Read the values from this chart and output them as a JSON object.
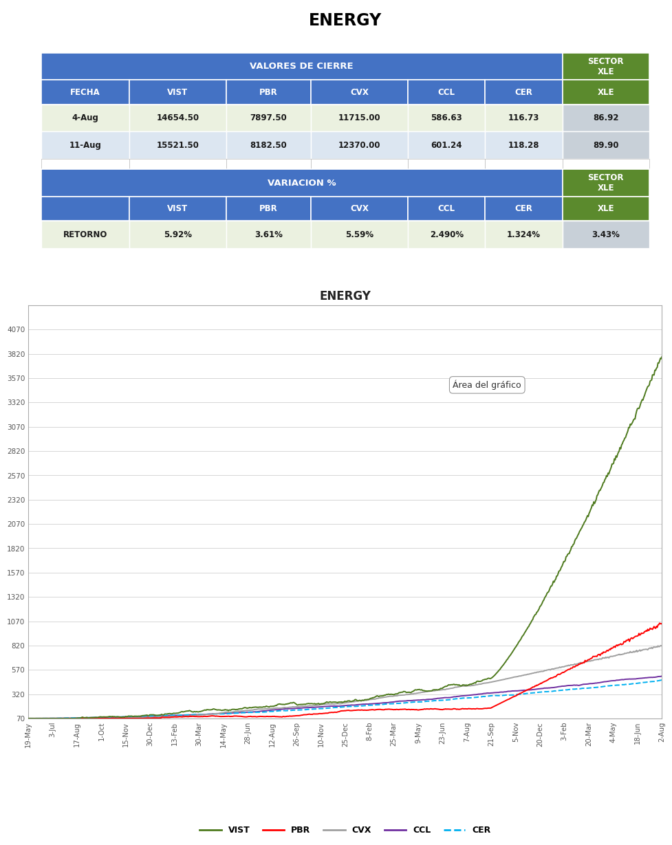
{
  "title": "ENERGY",
  "blue": "#4472C4",
  "green": "#5B8A2D",
  "light_green_bg": "#EBF1E0",
  "light_gray_bg": "#DCE6F1",
  "sector_col_bg1": "#C0C8C0",
  "sector_col_bg2": "#B8C4D4",
  "valores_title": "VALORES DE CIERRE",
  "variacion_title": "VARIACION %",
  "cols_header": [
    "FECHA",
    "VIST",
    "PBR",
    "CVX",
    "CCL",
    "CER"
  ],
  "sector_header": "SECTOR\nXLE",
  "rows1": [
    [
      "4-Aug",
      "14654.50",
      "7897.50",
      "11715.00",
      "586.63",
      "116.73",
      "86.92"
    ],
    [
      "11-Aug",
      "15521.50",
      "8182.50",
      "12370.00",
      "601.24",
      "118.28",
      "89.90"
    ]
  ],
  "rows2": [
    [
      "RETORNO",
      "5.92%",
      "3.61%",
      "5.59%",
      "2.490%",
      "1.324%",
      "3.43%"
    ]
  ],
  "chart_title": "ENERGY",
  "yticks": [
    70,
    320,
    570,
    820,
    1070,
    1320,
    1570,
    1820,
    2070,
    2320,
    2570,
    2820,
    3070,
    3320,
    3570,
    3820,
    4070
  ],
  "xtick_labels": [
    "19-May",
    "3-Jul",
    "17-Aug",
    "1-Oct",
    "15-Nov",
    "30-Dec",
    "13-Feb",
    "30-Mar",
    "14-May",
    "28-Jun",
    "12-Aug",
    "26-Sep",
    "10-Nov",
    "25-Dec",
    "8-Feb",
    "25-Mar",
    "9-May",
    "23-Jun",
    "7-Aug",
    "21-Sep",
    "5-Nov",
    "20-Dec",
    "3-Feb",
    "20-Mar",
    "4-May",
    "18-Jun",
    "2-Aug"
  ],
  "n_points": 800,
  "vist_color": "#4E7A1E",
  "pbr_color": "#FF0000",
  "cvx_color": "#A0A0A0",
  "ccl_color": "#7030A0",
  "cer_color": "#00B0F0",
  "annotation_text": "Área del gráfico",
  "grid_color": "#D0D0D0",
  "chart_border_color": "#AAAAAA"
}
